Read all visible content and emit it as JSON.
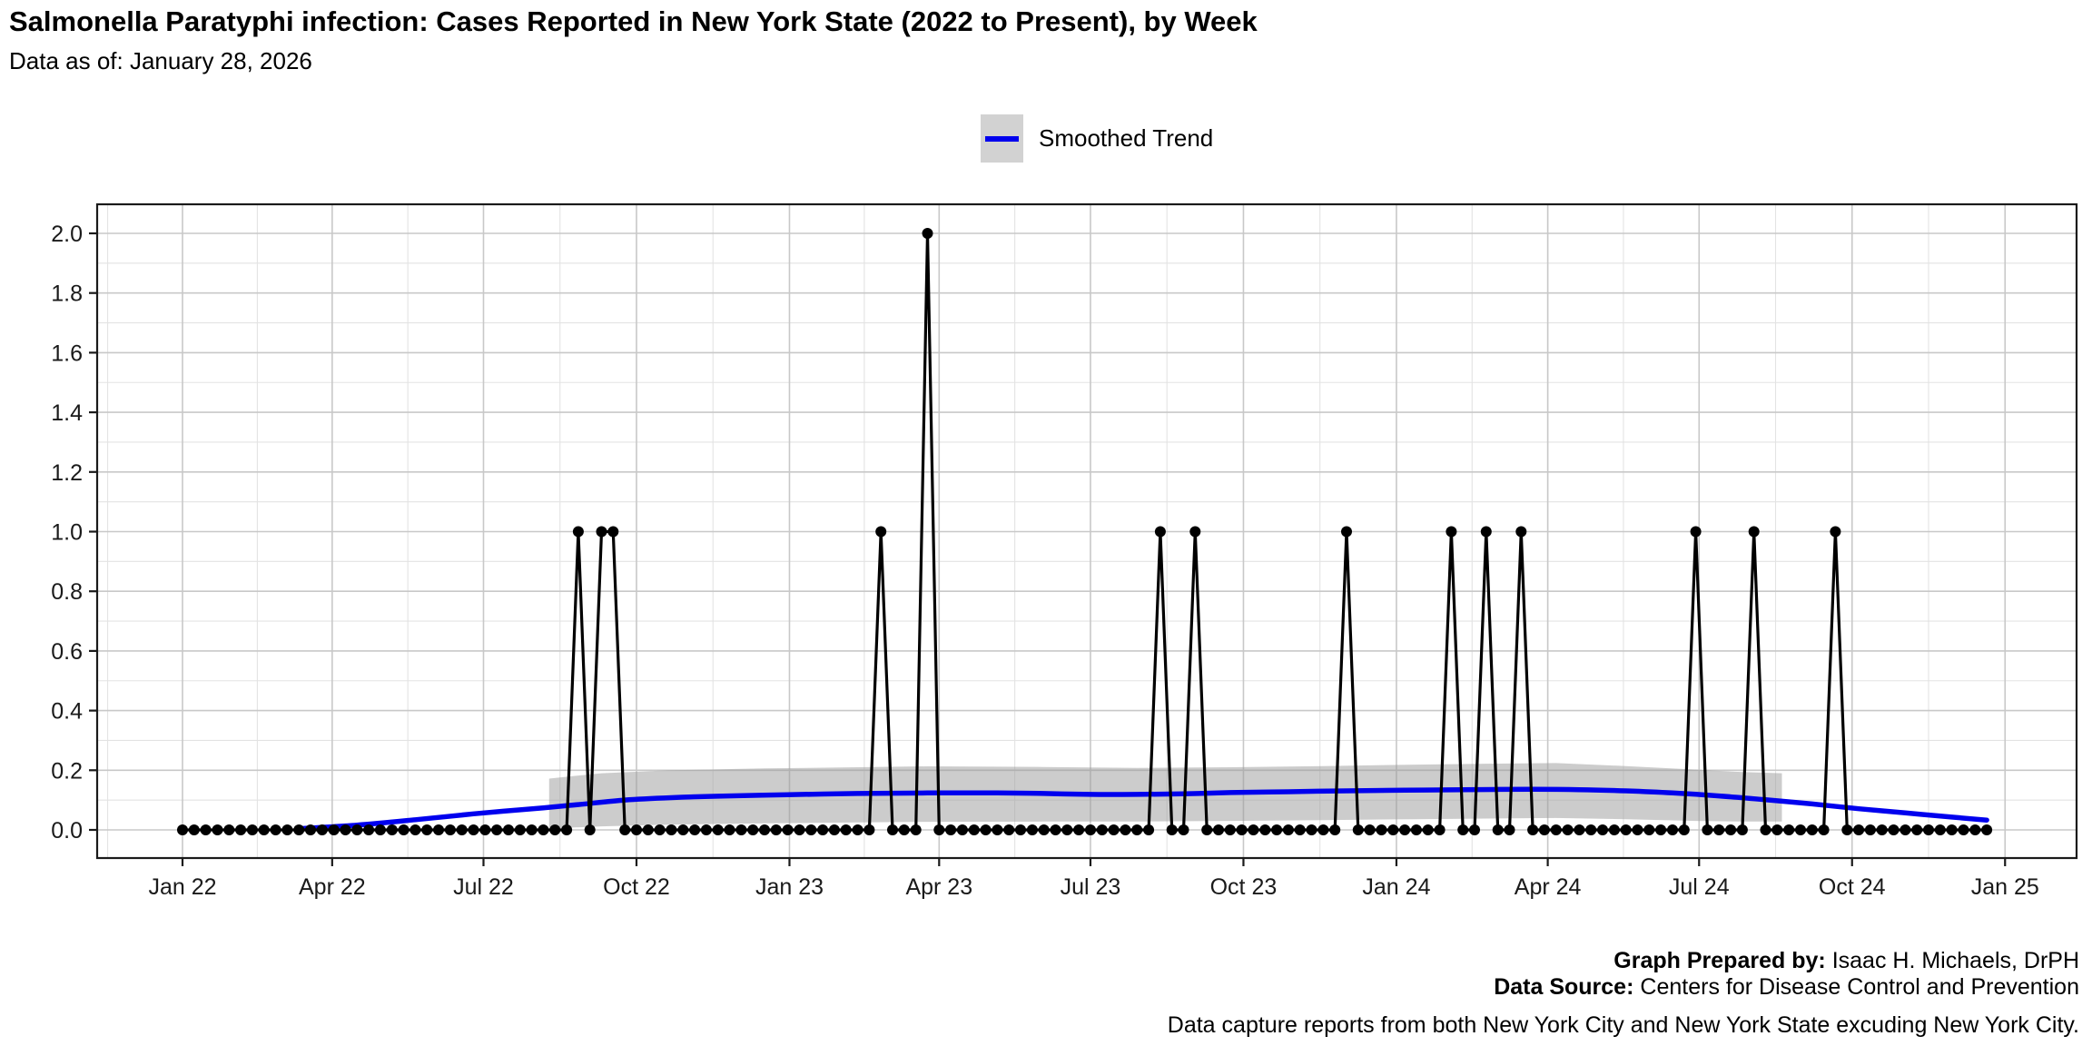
{
  "header": {
    "title": "Salmonella Paratyphi infection: Cases Reported in New York State (2022 to Present), by Week",
    "subtitle": "Data as of: January 28, 2026"
  },
  "legend": {
    "label": "Smoothed Trend"
  },
  "footer": {
    "prepared_by_label": "Graph Prepared by:",
    "prepared_by": "Isaac H. Michaels, DrPH",
    "source_label": "Data Source:",
    "source": "Centers for Disease Control and Prevention",
    "note": "Data capture reports from both New York City and New York State excuding New York City."
  },
  "chart_data": {
    "type": "line",
    "title": "Salmonella Paratyphi infection: Cases Reported in New York State (2022 to Present), by Week",
    "subtitle": "Data as of: January 28, 2026",
    "ylim": [
      0,
      2
    ],
    "y_tick_labels": [
      "0.0",
      "0.2",
      "0.4",
      "0.6",
      "0.8",
      "1.0",
      "1.2",
      "1.4",
      "1.6",
      "1.8",
      "2.0"
    ],
    "y_minor_step": 0.1,
    "grid": "major+minor",
    "legend_position": "top-center",
    "x_axis": {
      "start_week_ending": "2022-01-01",
      "interval_days": 7,
      "n_weeks": 156,
      "ticks": [
        {
          "label": "Jan 22",
          "date": "2022-01-01"
        },
        {
          "label": "Apr 22",
          "date": "2022-04-01"
        },
        {
          "label": "Jul 22",
          "date": "2022-07-01"
        },
        {
          "label": "Oct 22",
          "date": "2022-10-01"
        },
        {
          "label": "Jan 23",
          "date": "2023-01-01"
        },
        {
          "label": "Apr 23",
          "date": "2023-04-01"
        },
        {
          "label": "Jul 23",
          "date": "2023-07-01"
        },
        {
          "label": "Oct 23",
          "date": "2023-10-01"
        },
        {
          "label": "Jan 24",
          "date": "2024-01-01"
        },
        {
          "label": "Apr 24",
          "date": "2024-04-01"
        },
        {
          "label": "Jul 24",
          "date": "2024-07-01"
        },
        {
          "label": "Oct 24",
          "date": "2024-10-01"
        },
        {
          "label": "Jan 25",
          "date": "2025-01-01"
        }
      ]
    },
    "series": [
      {
        "name": "Weekly Cases",
        "style": "line+marker",
        "color": "#000000",
        "baseline_value": 0,
        "nonzero_weeks": [
          {
            "week_ending": "2022-08-27",
            "cases": 1
          },
          {
            "week_ending": "2022-09-10",
            "cases": 1
          },
          {
            "week_ending": "2022-09-17",
            "cases": 1
          },
          {
            "week_ending": "2023-02-25",
            "cases": 1
          },
          {
            "week_ending": "2023-03-25",
            "cases": 2
          },
          {
            "week_ending": "2023-08-12",
            "cases": 1
          },
          {
            "week_ending": "2023-09-02",
            "cases": 1
          },
          {
            "week_ending": "2023-12-02",
            "cases": 1
          },
          {
            "week_ending": "2024-02-03",
            "cases": 1
          },
          {
            "week_ending": "2024-02-24",
            "cases": 1
          },
          {
            "week_ending": "2024-03-16",
            "cases": 1
          },
          {
            "week_ending": "2024-06-29",
            "cases": 1
          },
          {
            "week_ending": "2024-08-03",
            "cases": 1
          },
          {
            "week_ending": "2024-09-21",
            "cases": 1
          }
        ]
      },
      {
        "name": "Smoothed Trend",
        "style": "line",
        "color": "#0000ee",
        "points_week_value": [
          [
            10,
            0.004
          ],
          [
            15,
            0.016
          ],
          [
            20,
            0.034
          ],
          [
            25,
            0.054
          ],
          [
            31,
            0.074
          ],
          [
            34,
            0.085
          ],
          [
            38,
            0.1
          ],
          [
            42,
            0.108
          ],
          [
            46,
            0.113
          ],
          [
            52,
            0.118
          ],
          [
            58,
            0.122
          ],
          [
            64,
            0.124
          ],
          [
            70,
            0.124
          ],
          [
            74,
            0.122
          ],
          [
            78,
            0.119
          ],
          [
            82,
            0.119
          ],
          [
            86,
            0.121
          ],
          [
            90,
            0.125
          ],
          [
            95,
            0.128
          ],
          [
            100,
            0.131
          ],
          [
            105,
            0.133
          ],
          [
            110,
            0.135
          ],
          [
            116,
            0.136
          ],
          [
            120,
            0.135
          ],
          [
            124,
            0.131
          ],
          [
            128,
            0.124
          ],
          [
            132,
            0.114
          ],
          [
            136,
            0.101
          ],
          [
            140,
            0.087
          ],
          [
            144,
            0.071
          ],
          [
            148,
            0.057
          ],
          [
            152,
            0.043
          ],
          [
            155,
            0.033
          ]
        ]
      },
      {
        "name": "Confidence Band",
        "style": "band",
        "color": "rgba(153,153,153,0.5)",
        "points_week_lo_hi": [
          [
            31.5,
            0.005,
            0.172
          ],
          [
            36,
            0.012,
            0.19
          ],
          [
            42,
            0.018,
            0.2
          ],
          [
            50,
            0.022,
            0.206
          ],
          [
            58,
            0.025,
            0.21
          ],
          [
            64,
            0.027,
            0.213
          ],
          [
            74,
            0.028,
            0.211
          ],
          [
            82,
            0.028,
            0.208
          ],
          [
            90,
            0.03,
            0.21
          ],
          [
            98,
            0.033,
            0.214
          ],
          [
            106,
            0.036,
            0.219
          ],
          [
            112,
            0.038,
            0.222
          ],
          [
            118,
            0.04,
            0.224
          ],
          [
            124,
            0.036,
            0.214
          ],
          [
            130,
            0.03,
            0.202
          ],
          [
            134,
            0.028,
            0.194
          ],
          [
            137.4,
            0.028,
            0.19
          ]
        ]
      }
    ],
    "colors": {
      "cases_line": "#000000",
      "trend_line": "#0000ee",
      "band_fill": "rgba(153,153,153,0.5)",
      "grid_major": "#c8c8c8",
      "grid_minor": "#e3e3e3",
      "panel_border": "#1a1a1a"
    }
  }
}
